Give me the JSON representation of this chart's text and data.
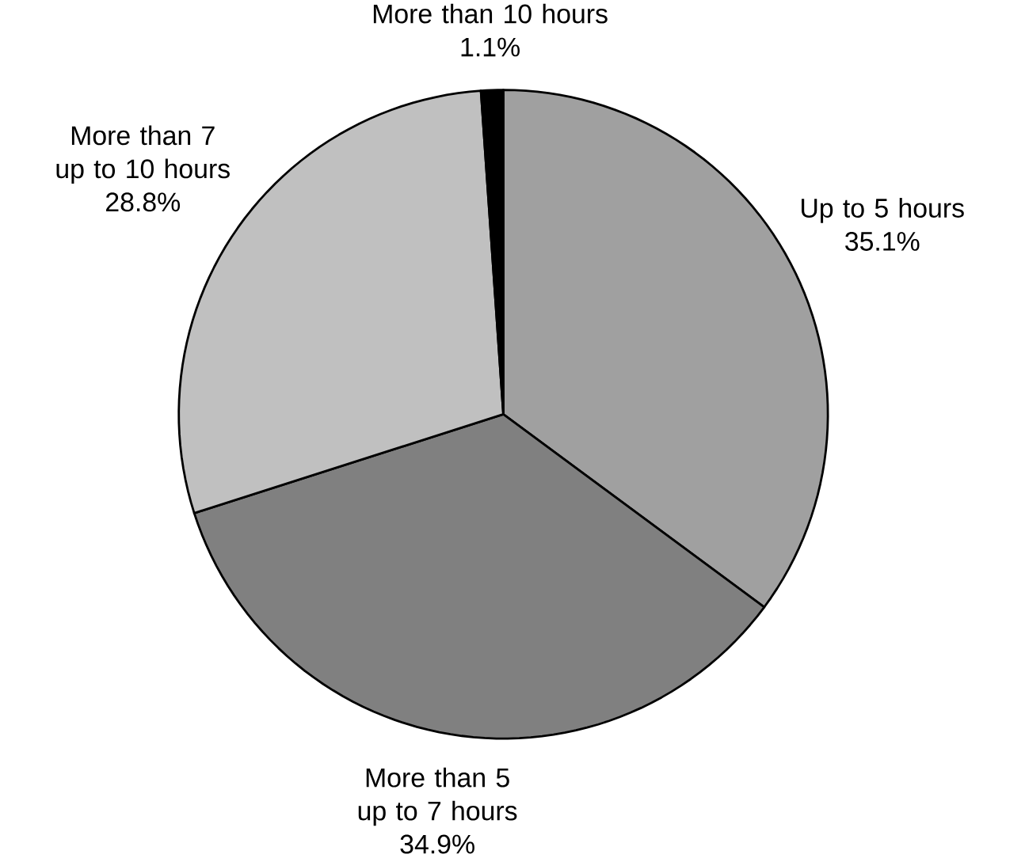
{
  "chart_data": {
    "type": "pie",
    "categories": [
      "Up to 5 hours",
      "More than 5 up to 7 hours",
      "More than 7 up to 10 hours",
      "More than 10 hours"
    ],
    "values": [
      35.1,
      34.9,
      28.8,
      1.1
    ],
    "value_labels": [
      "35.1%",
      "34.9%",
      "28.8%",
      "1.1%"
    ],
    "colors": [
      "#a0a0a0",
      "#808080",
      "#c0c0c0",
      "#000000"
    ]
  }
}
